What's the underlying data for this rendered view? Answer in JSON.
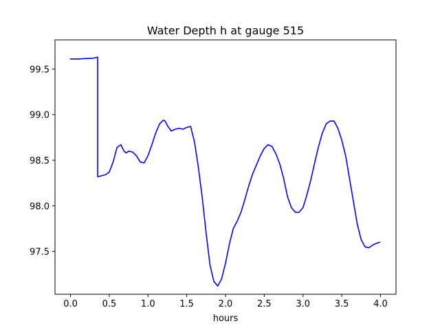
{
  "chart_data": {
    "type": "line",
    "title": "Water Depth h at gauge 515",
    "xlabel": "hours",
    "ylabel": "",
    "xlim": [
      -0.2,
      4.2
    ],
    "ylim": [
      97.03,
      99.82
    ],
    "xticks": [
      0.0,
      0.5,
      1.0,
      1.5,
      2.0,
      2.5,
      3.0,
      3.5,
      4.0
    ],
    "xtick_labels": [
      "0.0",
      "0.5",
      "1.0",
      "1.5",
      "2.0",
      "2.5",
      "3.0",
      "3.5",
      "4.0"
    ],
    "yticks": [
      97.5,
      98.0,
      98.5,
      99.0,
      99.5
    ],
    "ytick_labels": [
      "97.5",
      "98.0",
      "98.5",
      "99.0",
      "99.5"
    ],
    "grid": false,
    "series": [
      {
        "color": "#0000ff",
        "x": [
          0.0,
          0.1,
          0.2,
          0.3,
          0.35,
          0.35,
          0.36,
          0.4,
          0.45,
          0.5,
          0.55,
          0.6,
          0.65,
          0.69,
          0.72,
          0.75,
          0.8,
          0.85,
          0.9,
          0.95,
          1.0,
          1.05,
          1.1,
          1.15,
          1.2,
          1.22,
          1.25,
          1.3,
          1.35,
          1.4,
          1.45,
          1.5,
          1.55,
          1.6,
          1.65,
          1.7,
          1.75,
          1.8,
          1.85,
          1.9,
          1.95,
          2.0,
          2.05,
          2.1,
          2.15,
          2.2,
          2.25,
          2.3,
          2.35,
          2.4,
          2.45,
          2.5,
          2.55,
          2.6,
          2.65,
          2.7,
          2.75,
          2.8,
          2.85,
          2.9,
          2.95,
          3.0,
          3.05,
          3.1,
          3.15,
          3.2,
          3.25,
          3.3,
          3.35,
          3.4,
          3.45,
          3.5,
          3.55,
          3.6,
          3.65,
          3.7,
          3.75,
          3.8,
          3.85,
          3.9,
          3.95,
          3.99
        ],
        "y": [
          99.61,
          99.61,
          99.615,
          99.62,
          99.63,
          98.32,
          98.32,
          98.33,
          98.34,
          98.37,
          98.48,
          98.64,
          98.67,
          98.6,
          98.58,
          98.6,
          98.59,
          98.55,
          98.48,
          98.47,
          98.55,
          98.67,
          98.8,
          98.9,
          98.94,
          98.93,
          98.88,
          98.82,
          98.84,
          98.85,
          98.84,
          98.86,
          98.87,
          98.7,
          98.42,
          98.09,
          97.7,
          97.35,
          97.17,
          97.12,
          97.2,
          97.37,
          97.58,
          97.75,
          97.83,
          97.93,
          98.07,
          98.22,
          98.35,
          98.45,
          98.55,
          98.63,
          98.67,
          98.65,
          98.57,
          98.46,
          98.3,
          98.1,
          97.98,
          97.93,
          97.93,
          97.98,
          98.12,
          98.28,
          98.47,
          98.65,
          98.8,
          98.9,
          98.93,
          98.93,
          98.85,
          98.72,
          98.55,
          98.3,
          98.05,
          97.8,
          97.63,
          97.55,
          97.54,
          97.57,
          97.59,
          97.6
        ]
      }
    ]
  }
}
